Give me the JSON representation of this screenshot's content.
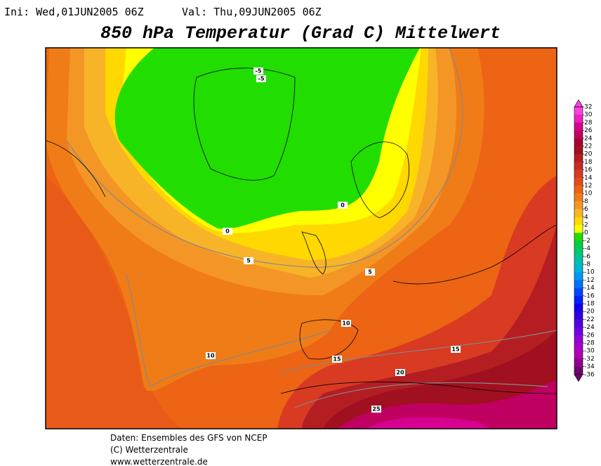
{
  "header": {
    "init": "Ini: Wed,01JUN2005 06Z",
    "valid": "Val: Thu,09JUN2005 06Z",
    "title": "850 hPa Temperatur (Grad C) Mittelwert"
  },
  "contour_labels": [
    -5,
    -5,
    0,
    0,
    5,
    5,
    10,
    10,
    15,
    15,
    20,
    25
  ],
  "colorbar": {
    "labels": [
      32,
      30,
      28,
      26,
      24,
      22,
      20,
      18,
      16,
      14,
      12,
      10,
      8,
      6,
      4,
      2,
      0,
      -2,
      -4,
      -6,
      -8,
      -10,
      -12,
      -14,
      -16,
      -18,
      -20,
      -22,
      -24,
      -26,
      -28,
      -30,
      -32,
      -34,
      -36
    ],
    "colors": [
      "#ff40e0",
      "#f020c0",
      "#d80090",
      "#c00060",
      "#a80030",
      "#a01020",
      "#b41e22",
      "#c82a24",
      "#d83a22",
      "#e44c1c",
      "#ec6414",
      "#f07c18",
      "#f49626",
      "#f8b428",
      "#ffd800",
      "#ffff00",
      "#22dd00",
      "#00d040",
      "#00c878",
      "#00c0a8",
      "#00b4d8",
      "#0098f0",
      "#0070ff",
      "#0048ff",
      "#0020ff",
      "#1000f0",
      "#3000e0",
      "#5000e0",
      "#7000e0",
      "#9000d8",
      "#a800c8",
      "#b000b0",
      "#900090",
      "#700070"
    ]
  },
  "footer": [
    "Daten: Ensembles des GFS von NCEP",
    "(C) Wetterzentrale",
    "www.wetterzentrale.de"
  ]
}
